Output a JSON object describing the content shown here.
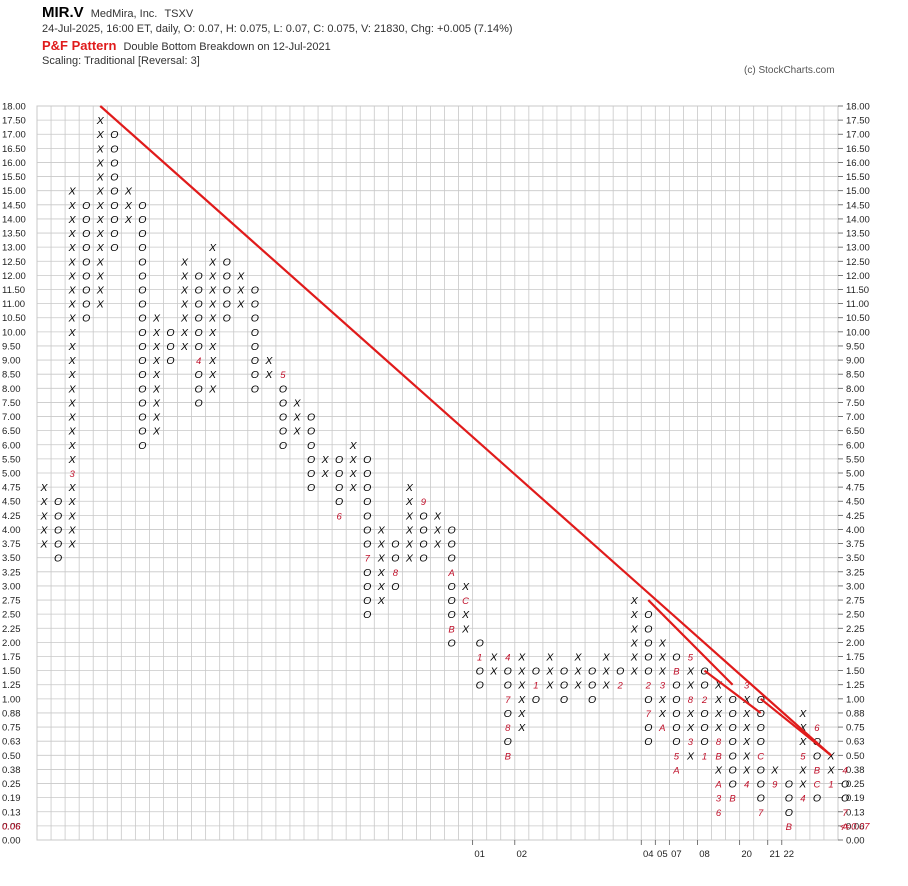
{
  "header": {
    "symbol": "MIR.V",
    "company": "MedMira, Inc.",
    "exchange": "TSXV",
    "quote_line": "24-Jul-2025, 16:00 ET, daily, O: 0.07, H: 0.075, L: 0.07, C: 0.075, V: 21830, Chg: +0.005 (7.14%)",
    "pattern_label": "P&F Pattern",
    "pattern_text": "Double Bottom Breakdown on 12-Jul-2021",
    "scaling": "Scaling: Traditional [Reversal: 3]",
    "copyright": "(c) StockCharts.com"
  },
  "colors": {
    "x_mark": "#000000",
    "o_mark": "#000000",
    "month_mark": "#c0102a",
    "trendline": "#e01b1b",
    "grid": "#c8c8c8",
    "last_price": "#c0102a"
  },
  "chart_data": {
    "type": "point-and-figure",
    "scaling": "Traditional",
    "reversal": 3,
    "y_ticks": [
      "18.00",
      "17.50",
      "17.00",
      "16.50",
      "16.00",
      "15.50",
      "15.00",
      "14.50",
      "14.00",
      "13.50",
      "13.00",
      "12.50",
      "12.00",
      "11.50",
      "11.00",
      "10.50",
      "10.00",
      "9.50",
      "9.00",
      "8.50",
      "8.00",
      "7.50",
      "7.00",
      "6.50",
      "6.00",
      "5.50",
      "5.00",
      "4.75",
      "4.50",
      "4.25",
      "4.00",
      "3.75",
      "3.50",
      "3.25",
      "3.00",
      "2.75",
      "2.50",
      "2.25",
      "2.00",
      "1.75",
      "1.50",
      "1.25",
      "1.00",
      "0.88",
      "0.75",
      "0.63",
      "0.50",
      "0.38",
      "0.25",
      "0.19",
      "0.13",
      "0.06",
      "0.00"
    ],
    "last_price_left": "0.06",
    "last_price_right": "<<0.07",
    "year_labels": [
      {
        "label": "01",
        "col": 31
      },
      {
        "label": "02",
        "col": 34
      },
      {
        "label": "04",
        "col": 43
      },
      {
        "label": "05",
        "col": 44
      },
      {
        "label": "07",
        "col": 45
      },
      {
        "label": "08",
        "col": 47
      },
      {
        "label": "20",
        "col": 50
      },
      {
        "label": "21",
        "col": 52
      },
      {
        "label": "22",
        "col": 53
      }
    ],
    "columns": [
      {
        "type": "X",
        "top": 4.75,
        "bottom": 3.75
      },
      {
        "type": "O",
        "top": 4.5,
        "bottom": 3.5
      },
      {
        "type": "X",
        "top": 15.0,
        "bottom": 3.75,
        "months": {
          "5.00": "3"
        }
      },
      {
        "type": "O",
        "top": 14.5,
        "bottom": 10.5
      },
      {
        "type": "X",
        "top": 17.5,
        "bottom": 11.0
      },
      {
        "type": "O",
        "top": 17.0,
        "bottom": 13.0
      },
      {
        "type": "X",
        "top": 15.0,
        "bottom": 14.0
      },
      {
        "type": "O",
        "top": 14.5,
        "bottom": 6.0
      },
      {
        "type": "X",
        "top": 10.5,
        "bottom": 6.5
      },
      {
        "type": "O",
        "top": 10.0,
        "bottom": 9.0
      },
      {
        "type": "X",
        "top": 12.5,
        "bottom": 9.5
      },
      {
        "type": "O",
        "top": 12.0,
        "bottom": 7.5,
        "months": {
          "9.00": "4"
        }
      },
      {
        "type": "X",
        "top": 13.0,
        "bottom": 8.0
      },
      {
        "type": "O",
        "top": 12.5,
        "bottom": 10.5
      },
      {
        "type": "X",
        "top": 12.0,
        "bottom": 11.0
      },
      {
        "type": "O",
        "top": 11.5,
        "bottom": 8.0
      },
      {
        "type": "X",
        "top": 9.0,
        "bottom": 8.5
      },
      {
        "type": "O",
        "top": 8.5,
        "bottom": 6.0,
        "months": {
          "8.50": "5"
        }
      },
      {
        "type": "X",
        "top": 7.5,
        "bottom": 6.5
      },
      {
        "type": "O",
        "top": 7.0,
        "bottom": 4.75
      },
      {
        "type": "X",
        "top": 5.5,
        "bottom": 5.0
      },
      {
        "type": "O",
        "top": 5.5,
        "bottom": 4.25,
        "months": {
          "4.25": "6"
        }
      },
      {
        "type": "X",
        "top": 6.0,
        "bottom": 4.75
      },
      {
        "type": "O",
        "top": 5.5,
        "bottom": 2.5,
        "months": {
          "3.50": "7"
        }
      },
      {
        "type": "X",
        "top": 4.0,
        "bottom": 2.75
      },
      {
        "type": "O",
        "top": 3.75,
        "bottom": 3.0,
        "months": {
          "3.25": "8"
        }
      },
      {
        "type": "X",
        "top": 4.75,
        "bottom": 3.5
      },
      {
        "type": "O",
        "top": 4.5,
        "bottom": 3.5,
        "months": {
          "4.50": "9"
        }
      },
      {
        "type": "X",
        "top": 4.25,
        "bottom": 3.75
      },
      {
        "type": "O",
        "top": 4.0,
        "bottom": 2.0,
        "months": {
          "3.25": "A",
          "2.25": "B"
        }
      },
      {
        "type": "X",
        "top": 3.0,
        "bottom": 2.25,
        "months": {
          "2.75": "C"
        }
      },
      {
        "type": "O",
        "top": 2.0,
        "bottom": 1.25,
        "months": {
          "1.75": "1"
        }
      },
      {
        "type": "X",
        "top": 1.75,
        "bottom": 1.5
      },
      {
        "type": "O",
        "top": 1.75,
        "bottom": 0.5,
        "months": {
          "1.75": "4",
          "1.00": "7",
          "0.75": "8",
          "0.50": "B"
        }
      },
      {
        "type": "X",
        "top": 1.75,
        "bottom": 0.75,
        "months": {
          "0.63": "C"
        }
      },
      {
        "type": "O",
        "top": 1.5,
        "bottom": 1.0,
        "months": {
          "1.25": "1"
        }
      },
      {
        "type": "X",
        "top": 1.75,
        "bottom": 1.25
      },
      {
        "type": "O",
        "top": 1.5,
        "bottom": 1.0
      },
      {
        "type": "X",
        "top": 1.75,
        "bottom": 1.25
      },
      {
        "type": "O",
        "top": 1.5,
        "bottom": 1.0
      },
      {
        "type": "X",
        "top": 1.75,
        "bottom": 1.25
      },
      {
        "type": "O",
        "top": 1.5,
        "bottom": 1.25,
        "months": {
          "1.25": "2"
        }
      },
      {
        "type": "X",
        "top": 2.75,
        "bottom": 1.5
      },
      {
        "type": "O",
        "top": 2.5,
        "bottom": 0.63,
        "months": {
          "1.25": "2",
          "0.88": "7"
        }
      },
      {
        "type": "X",
        "top": 2.0,
        "bottom": 0.75,
        "months": {
          "1.25": "3",
          "0.75": "A"
        }
      },
      {
        "type": "O",
        "top": 1.75,
        "bottom": 0.38,
        "months": {
          "1.50": "B",
          "0.50": "5",
          "0.38": "A"
        }
      },
      {
        "type": "X",
        "top": 1.75,
        "bottom": 0.5,
        "months": {
          "1.75": "5",
          "1.00": "8",
          "0.63": "3"
        }
      },
      {
        "type": "O",
        "top": 1.5,
        "bottom": 0.5,
        "months": {
          "1.00": "2",
          "0.50": "1"
        }
      },
      {
        "type": "X",
        "top": 1.25,
        "bottom": 0.13,
        "months": {
          "0.63": "8",
          "0.50": "B",
          "0.25": "A",
          "0.19": "3",
          "0.13": "6"
        }
      },
      {
        "type": "O",
        "top": 1.0,
        "bottom": 0.19,
        "months": {
          "0.19": "B"
        }
      },
      {
        "type": "X",
        "top": 1.25,
        "bottom": 0.25,
        "months": {
          "1.25": "3",
          "0.25": "4"
        }
      },
      {
        "type": "O",
        "top": 1.0,
        "bottom": 0.13,
        "months": {
          "0.50": "C",
          "0.13": "7"
        }
      },
      {
        "type": "X",
        "top": 0.38,
        "bottom": 0.25,
        "months": {
          "0.25": "9"
        }
      },
      {
        "type": "O",
        "top": 0.25,
        "bottom": 0.06,
        "months": {
          "0.06": "B"
        }
      },
      {
        "type": "X",
        "top": 0.88,
        "bottom": 0.19,
        "months": {
          "0.50": "5",
          "0.19": "4"
        }
      },
      {
        "type": "O",
        "top": 0.75,
        "bottom": 0.19,
        "months": {
          "0.75": "6",
          "0.38": "B",
          "0.25": "C"
        }
      },
      {
        "type": "X",
        "top": 0.5,
        "bottom": 0.25,
        "months": {
          "0.25": "1"
        }
      },
      {
        "type": "O",
        "top": 0.38,
        "bottom": 0.06,
        "months": {
          "0.38": "4",
          "0.13": "7",
          "0.06": "A"
        }
      }
    ],
    "trendlines": [
      {
        "from": {
          "col": 4,
          "price": 18.0
        },
        "to": {
          "col": 56,
          "price": 0.5
        }
      },
      {
        "from": {
          "col": 43,
          "price": 2.75
        },
        "to": {
          "col": 49,
          "price": 1.25
        }
      },
      {
        "from": {
          "col": 47,
          "price": 1.5
        },
        "to": {
          "col": 51,
          "price": 0.88
        }
      },
      {
        "from": {
          "col": 51,
          "price": 1.0
        },
        "to": {
          "col": 56,
          "price": 0.5
        }
      }
    ]
  }
}
